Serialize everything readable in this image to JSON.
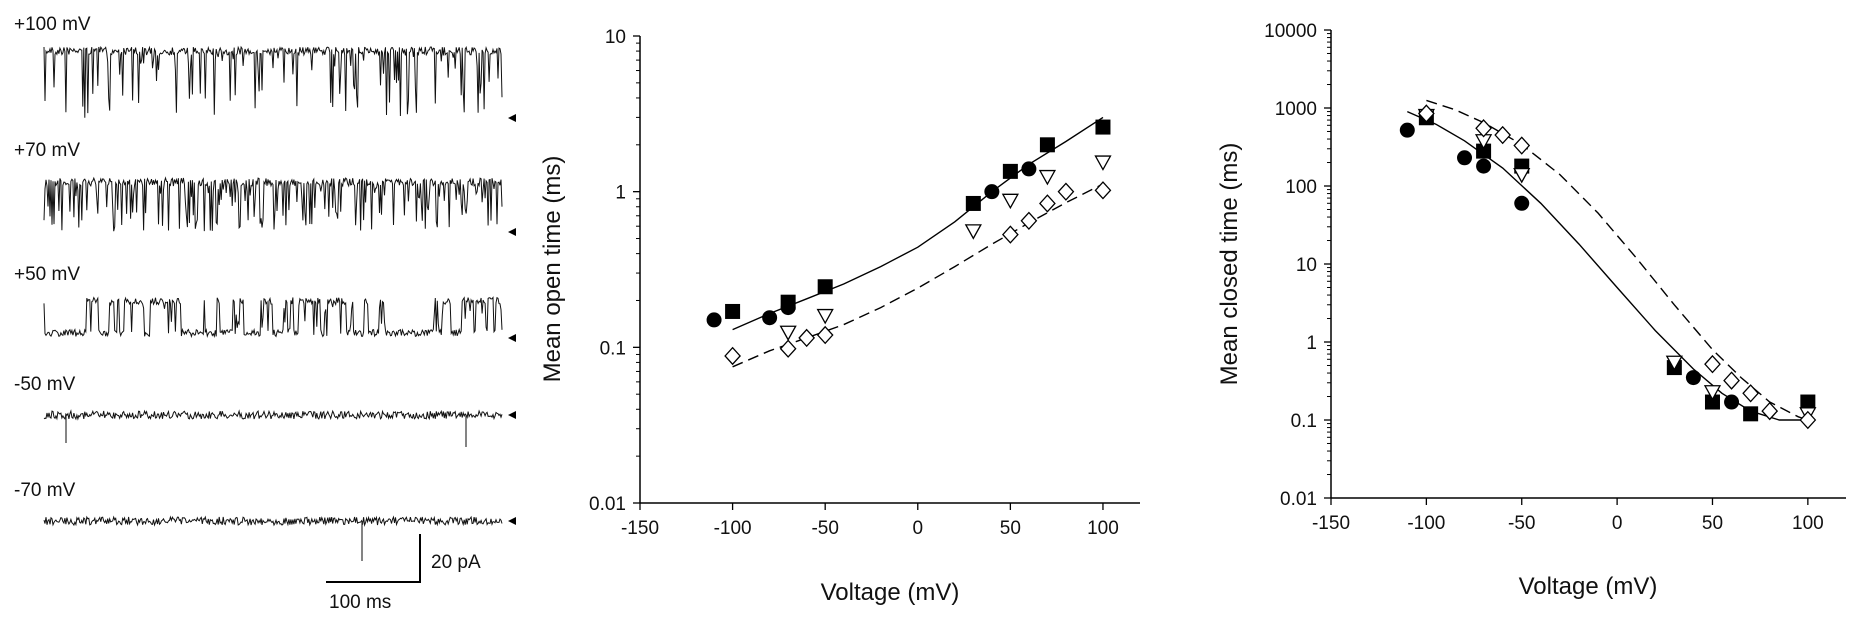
{
  "traces": {
    "panel": "single-channel recordings",
    "items": [
      {
        "label": "+100 mV",
        "pattern": "mostly-open-brief-closures"
      },
      {
        "label": "+70 mV",
        "pattern": "mostly-open-frequent-closures"
      },
      {
        "label": "+50 mV",
        "pattern": "bursting"
      },
      {
        "label": "-50 mV",
        "pattern": "closed-rare-openings"
      },
      {
        "label": "-70 mV",
        "pattern": "closed-rare-openings"
      }
    ],
    "scale_bar": {
      "current_label": "20 pA",
      "time_label": "100 ms"
    }
  },
  "chart_data": [
    {
      "type": "scatter",
      "xlabel": "Voltage (mV)",
      "ylabel": "Mean open time (ms)",
      "xlim": [
        -150,
        120
      ],
      "ylim": [
        0.01,
        10
      ],
      "yscale": "log",
      "x_ticks": [
        "-150",
        "-100",
        "-50",
        "0",
        "50",
        "100"
      ],
      "y_ticks": [
        "0.01",
        "0.1",
        "1",
        "10"
      ],
      "grid": false,
      "series": [
        {
          "marker": "filled-circle",
          "points": [
            [
              -110,
              0.15
            ],
            [
              -80,
              0.155
            ],
            [
              -70,
              0.18
            ],
            [
              40,
              1.0
            ],
            [
              60,
              1.4
            ]
          ]
        },
        {
          "marker": "filled-square",
          "points": [
            [
              -100,
              0.17
            ],
            [
              -70,
              0.195
            ],
            [
              -50,
              0.245
            ],
            [
              30,
              0.84
            ],
            [
              50,
              1.35
            ],
            [
              70,
              2.0
            ],
            [
              100,
              2.6
            ]
          ]
        },
        {
          "marker": "open-triangle-down",
          "points": [
            [
              -70,
              0.125
            ],
            [
              -50,
              0.16
            ],
            [
              30,
              0.56
            ],
            [
              50,
              0.88
            ],
            [
              70,
              1.25
            ],
            [
              100,
              1.55
            ]
          ]
        },
        {
          "marker": "open-diamond",
          "points": [
            [
              -100,
              0.088
            ],
            [
              -70,
              0.098
            ],
            [
              -60,
              0.115
            ],
            [
              -50,
              0.12
            ],
            [
              50,
              0.53
            ],
            [
              60,
              0.65
            ],
            [
              70,
              0.84
            ],
            [
              80,
              1.0
            ],
            [
              100,
              1.02
            ]
          ]
        }
      ],
      "fits": [
        {
          "style": "solid",
          "points": [
            [
              -100,
              0.13
            ],
            [
              -80,
              0.165
            ],
            [
              -60,
              0.205
            ],
            [
              -40,
              0.255
            ],
            [
              -20,
              0.33
            ],
            [
              0,
              0.44
            ],
            [
              20,
              0.64
            ],
            [
              40,
              1.0
            ],
            [
              60,
              1.5
            ],
            [
              80,
              2.1
            ],
            [
              100,
              3.0
            ]
          ]
        },
        {
          "style": "dashed",
          "points": [
            [
              -100,
              0.075
            ],
            [
              -80,
              0.095
            ],
            [
              -60,
              0.115
            ],
            [
              -40,
              0.14
            ],
            [
              -20,
              0.18
            ],
            [
              0,
              0.24
            ],
            [
              20,
              0.33
            ],
            [
              40,
              0.46
            ],
            [
              60,
              0.63
            ],
            [
              80,
              0.85
            ],
            [
              100,
              1.12
            ]
          ]
        }
      ]
    },
    {
      "type": "scatter",
      "xlabel": "Voltage (mV)",
      "ylabel": "Mean closed time (ms)",
      "xlim": [
        -150,
        120
      ],
      "ylim": [
        0.01,
        10000
      ],
      "yscale": "log",
      "x_ticks": [
        "-150",
        "-100",
        "-50",
        "0",
        "50",
        "100"
      ],
      "y_ticks": [
        "0.01",
        "0.1",
        "1",
        "10",
        "100",
        "1000",
        "10000"
      ],
      "grid": false,
      "series": [
        {
          "marker": "filled-circle",
          "points": [
            [
              -110,
              520
            ],
            [
              -80,
              230
            ],
            [
              -70,
              180
            ],
            [
              -50,
              60
            ],
            [
              40,
              0.35
            ],
            [
              60,
              0.17
            ]
          ]
        },
        {
          "marker": "filled-square",
          "points": [
            [
              -100,
              750
            ],
            [
              -70,
              280
            ],
            [
              -50,
              180
            ],
            [
              30,
              0.47
            ],
            [
              50,
              0.17
            ],
            [
              70,
              0.12
            ],
            [
              100,
              0.17
            ]
          ]
        },
        {
          "marker": "open-triangle-down",
          "points": [
            [
              -100,
              800
            ],
            [
              -70,
              380
            ],
            [
              -50,
              140
            ],
            [
              30,
              0.55
            ],
            [
              50,
              0.23
            ],
            [
              100,
              0.12
            ]
          ]
        },
        {
          "marker": "open-diamond",
          "points": [
            [
              -100,
              850
            ],
            [
              -70,
              550
            ],
            [
              -60,
              450
            ],
            [
              -50,
              330
            ],
            [
              50,
              0.52
            ],
            [
              60,
              0.32
            ],
            [
              70,
              0.22
            ],
            [
              80,
              0.13
            ],
            [
              100,
              0.1
            ]
          ]
        }
      ],
      "fits": [
        {
          "style": "solid",
          "points": [
            [
              -110,
              900
            ],
            [
              -95,
              620
            ],
            [
              -80,
              380
            ],
            [
              -60,
              170
            ],
            [
              -40,
              60
            ],
            [
              -20,
              18
            ],
            [
              0,
              5
            ],
            [
              20,
              1.4
            ],
            [
              40,
              0.45
            ],
            [
              55,
              0.22
            ],
            [
              70,
              0.13
            ],
            [
              85,
              0.1
            ],
            [
              100,
              0.1
            ]
          ]
        },
        {
          "style": "dashed",
          "points": [
            [
              -100,
              1250
            ],
            [
              -85,
              950
            ],
            [
              -70,
              650
            ],
            [
              -50,
              340
            ],
            [
              -30,
              140
            ],
            [
              -10,
              45
            ],
            [
              10,
              12
            ],
            [
              30,
              3
            ],
            [
              50,
              0.8
            ],
            [
              65,
              0.35
            ],
            [
              80,
              0.17
            ],
            [
              95,
              0.11
            ],
            [
              100,
              0.1
            ]
          ]
        }
      ]
    }
  ]
}
